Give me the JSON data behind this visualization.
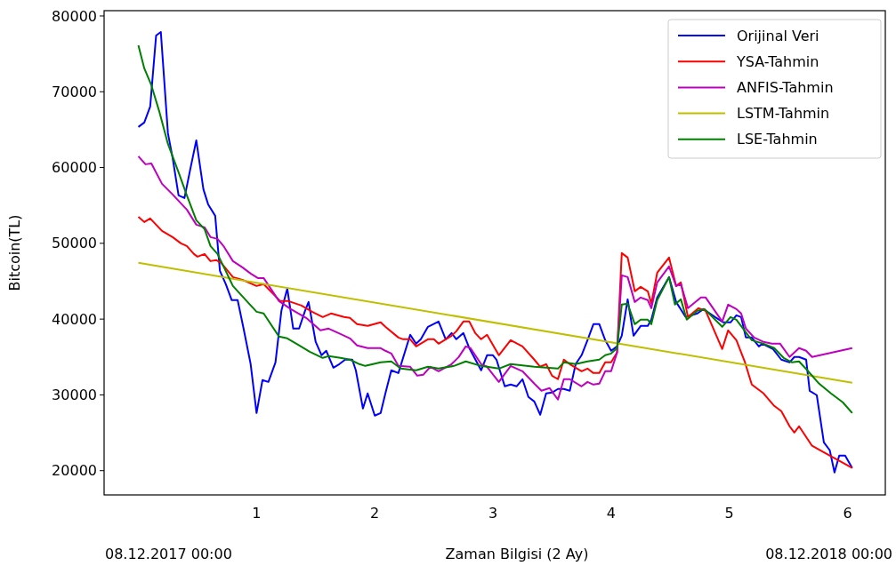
{
  "chart_data": {
    "type": "line",
    "xlabel": "Zaman Bilgisi (2 Ay)",
    "ylabel": "Bitcoin(TL)",
    "annotations": [
      "08.12.2017 00:00",
      "08.12.2018 00:00"
    ],
    "xlim": [
      -0.29,
      6.32
    ],
    "xticks": [
      1,
      2,
      3,
      4,
      5,
      6
    ],
    "ylim": [
      16800,
      80700
    ],
    "yticks": [
      20000,
      30000,
      40000,
      50000,
      60000,
      70000,
      80000
    ],
    "grid": false,
    "legend": "top right",
    "line_style": "solid",
    "series": [
      {
        "name": "Orijinal Veri",
        "color": "#0000ff",
        "x": [
          0,
          0.05,
          0.1,
          0.15,
          0.19,
          0.25,
          0.29,
          0.34,
          0.39,
          0.44,
          0.49,
          0.55,
          0.59,
          0.65,
          0.69,
          0.74,
          0.79,
          0.84,
          0.89,
          0.95,
          1.0,
          1.05,
          1.1,
          1.16,
          1.21,
          1.26,
          1.31,
          1.36,
          1.41,
          1.44,
          1.5,
          1.55,
          1.59,
          1.65,
          1.7,
          1.75,
          1.81,
          1.84,
          1.9,
          1.94,
          2.0,
          2.05,
          2.09,
          2.14,
          2.2,
          2.3,
          2.35,
          2.39,
          2.45,
          2.54,
          2.6,
          2.65,
          2.69,
          2.75,
          2.8,
          2.9,
          2.95,
          3.0,
          3.03,
          3.1,
          3.15,
          3.2,
          3.25,
          3.3,
          3.35,
          3.4,
          3.45,
          3.5,
          3.55,
          3.6,
          3.65,
          3.7,
          3.75,
          3.8,
          3.85,
          3.9,
          3.95,
          4.0,
          4.05,
          4.09,
          4.14,
          4.19,
          4.25,
          4.31,
          4.34,
          4.39,
          4.49,
          4.55,
          4.63,
          4.73,
          4.78,
          4.88,
          4.95,
          5.01,
          5.06,
          5.1,
          5.14,
          5.19,
          5.25,
          5.28,
          5.37,
          5.44,
          5.51,
          5.55,
          5.59,
          5.65,
          5.68,
          5.74,
          5.8,
          5.85,
          5.89,
          5.93,
          5.98,
          6.04
        ],
        "values": [
          65350,
          65940,
          68050,
          77420,
          77890,
          64530,
          61250,
          56330,
          55970,
          59840,
          63590,
          57150,
          55150,
          53630,
          46360,
          44600,
          42500,
          42500,
          38750,
          34060,
          27610,
          31950,
          31710,
          34290,
          41090,
          44020,
          38750,
          38750,
          41090,
          42260,
          37000,
          35230,
          35820,
          33590,
          34060,
          34650,
          34650,
          33240,
          28200,
          30190,
          27260,
          27610,
          30190,
          33240,
          32880,
          37930,
          36750,
          37340,
          38980,
          39680,
          37340,
          38160,
          37340,
          38160,
          36170,
          33240,
          35230,
          35230,
          34650,
          31130,
          31360,
          31130,
          32070,
          29720,
          29130,
          27380,
          30190,
          30310,
          30780,
          30780,
          30540,
          34060,
          35230,
          37220,
          39330,
          39330,
          37220,
          35820,
          36400,
          37810,
          42610,
          37810,
          39100,
          39100,
          39920,
          42850,
          45540,
          42260,
          40270,
          40740,
          41320,
          40270,
          39570,
          39570,
          40500,
          40270,
          37570,
          37570,
          36400,
          36750,
          36050,
          34650,
          34290,
          35000,
          35000,
          34650,
          30540,
          29960,
          23740,
          22690,
          19760,
          21990,
          21990,
          20350
        ]
      },
      {
        "name": "YSA-Tahmin",
        "color": "#ff0000",
        "x": [
          0,
          0.05,
          0.1,
          0.2,
          0.29,
          0.36,
          0.41,
          0.47,
          0.5,
          0.56,
          0.61,
          0.66,
          0.7,
          0.8,
          0.88,
          1.0,
          1.06,
          1.2,
          1.27,
          1.38,
          1.47,
          1.56,
          1.63,
          1.74,
          1.79,
          1.85,
          1.94,
          2.05,
          2.09,
          2.2,
          2.24,
          2.3,
          2.35,
          2.45,
          2.5,
          2.54,
          2.65,
          2.69,
          2.75,
          2.8,
          2.85,
          2.9,
          2.95,
          3.05,
          3.15,
          3.25,
          3.35,
          3.4,
          3.45,
          3.5,
          3.55,
          3.6,
          3.65,
          3.75,
          3.8,
          3.85,
          3.9,
          3.95,
          4.0,
          4.05,
          4.09,
          4.14,
          4.2,
          4.25,
          4.31,
          4.34,
          4.39,
          4.49,
          4.55,
          4.59,
          4.65,
          4.74,
          4.8,
          4.94,
          4.99,
          5.06,
          5.13,
          5.19,
          5.29,
          5.38,
          5.44,
          5.51,
          5.55,
          5.59,
          5.7,
          6.04
        ],
        "values": [
          53510,
          52810,
          53280,
          51640,
          50820,
          50000,
          49650,
          48590,
          48240,
          48590,
          47650,
          47770,
          47420,
          45540,
          45190,
          44370,
          44610,
          42380,
          42380,
          41790,
          40970,
          40270,
          40740,
          40270,
          40150,
          39330,
          39100,
          39570,
          38980,
          37570,
          37340,
          37340,
          36400,
          37340,
          37340,
          36750,
          37810,
          38390,
          39680,
          39680,
          38160,
          37340,
          37930,
          35230,
          37220,
          36400,
          34650,
          33710,
          34060,
          32530,
          32070,
          34650,
          34060,
          33120,
          33470,
          32880,
          32880,
          34290,
          34290,
          35580,
          48710,
          48120,
          43670,
          44250,
          43670,
          42030,
          46130,
          48120,
          44370,
          44840,
          40270,
          41440,
          41090,
          36050,
          38510,
          37220,
          34410,
          31360,
          30190,
          28550,
          27850,
          25860,
          25030,
          25860,
          23280,
          20350
        ]
      },
      {
        "name": "ANFIS-Tahmin",
        "color": "#bf00bf",
        "x": [
          0,
          0.06,
          0.11,
          0.2,
          0.29,
          0.36,
          0.41,
          0.49,
          0.56,
          0.61,
          0.67,
          0.72,
          0.8,
          0.88,
          0.95,
          1.01,
          1.06,
          1.19,
          1.29,
          1.42,
          1.54,
          1.61,
          1.71,
          1.79,
          1.85,
          1.94,
          2.05,
          2.09,
          2.14,
          2.2,
          2.3,
          2.36,
          2.41,
          2.47,
          2.54,
          2.65,
          2.71,
          2.77,
          2.81,
          2.9,
          2.95,
          3.05,
          3.15,
          3.25,
          3.35,
          3.41,
          3.48,
          3.55,
          3.6,
          3.65,
          3.75,
          3.8,
          3.85,
          3.9,
          3.95,
          4.0,
          4.05,
          4.09,
          4.14,
          4.2,
          4.25,
          4.31,
          4.34,
          4.39,
          4.49,
          4.55,
          4.59,
          4.65,
          4.76,
          4.8,
          4.94,
          4.99,
          5.06,
          5.1,
          5.14,
          5.21,
          5.29,
          5.36,
          5.43,
          5.51,
          5.59,
          5.65,
          5.7,
          6.04
        ],
        "values": [
          61480,
          60430,
          60540,
          57850,
          56440,
          55270,
          54450,
          52460,
          52110,
          50820,
          50580,
          49650,
          47650,
          46830,
          46010,
          45420,
          45420,
          42380,
          41320,
          40150,
          38510,
          38750,
          38040,
          37460,
          36520,
          36170,
          36170,
          35820,
          35460,
          33820,
          33710,
          32530,
          32650,
          33710,
          33120,
          34060,
          34990,
          36400,
          36170,
          34060,
          33710,
          31710,
          33820,
          33120,
          31480,
          30540,
          30890,
          29370,
          32070,
          32070,
          31130,
          31710,
          31360,
          31480,
          33120,
          33120,
          35580,
          45780,
          45540,
          42260,
          42850,
          42500,
          41440,
          44840,
          46950,
          44370,
          44610,
          41440,
          42850,
          42850,
          39680,
          41910,
          41320,
          40740,
          38750,
          37570,
          36990,
          36750,
          36750,
          35000,
          36170,
          35820,
          35000,
          36170
        ]
      },
      {
        "name": "LSTM-Tahmin",
        "color": "#bfbf00",
        "x": [
          0,
          6.04
        ],
        "values": [
          47420,
          31600
        ]
      },
      {
        "name": "LSE-Tahmin",
        "color": "#008000",
        "x": [
          0,
          0.05,
          0.11,
          0.18,
          0.25,
          0.34,
          0.41,
          0.49,
          0.56,
          0.61,
          0.67,
          0.8,
          0.91,
          1.0,
          1.06,
          1.19,
          1.26,
          1.35,
          1.45,
          1.56,
          1.61,
          1.71,
          1.79,
          1.87,
          1.92,
          2.05,
          2.14,
          2.22,
          2.35,
          2.45,
          2.54,
          2.67,
          2.77,
          2.9,
          3.05,
          3.15,
          3.35,
          3.55,
          3.6,
          3.7,
          3.8,
          3.9,
          3.95,
          4.0,
          4.05,
          4.09,
          4.14,
          4.2,
          4.25,
          4.31,
          4.34,
          4.39,
          4.49,
          4.54,
          4.59,
          4.64,
          4.73,
          4.79,
          4.94,
          5.01,
          5.06,
          5.19,
          5.29,
          5.38,
          5.46,
          5.53,
          5.59,
          5.66,
          5.76,
          5.86,
          5.96,
          6.04
        ],
        "values": [
          76130,
          73090,
          70860,
          67230,
          63120,
          59370,
          56330,
          53040,
          51880,
          49650,
          48590,
          44370,
          42500,
          40970,
          40740,
          37690,
          37460,
          36640,
          35700,
          34880,
          35110,
          34880,
          34650,
          34060,
          33820,
          34290,
          34410,
          33470,
          33240,
          33710,
          33470,
          33820,
          34410,
          33820,
          33470,
          34060,
          33710,
          33470,
          34290,
          34060,
          34410,
          34650,
          35230,
          35460,
          36170,
          41910,
          42030,
          39330,
          39920,
          39920,
          39330,
          42500,
          45540,
          41910,
          42610,
          39920,
          41090,
          41320,
          38980,
          40270,
          39920,
          37220,
          36750,
          36170,
          34880,
          34290,
          34410,
          33240,
          31480,
          30190,
          29020,
          27610
        ]
      }
    ]
  }
}
